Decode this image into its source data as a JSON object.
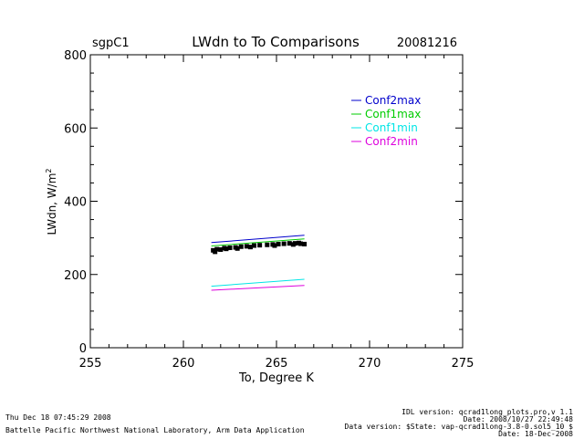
{
  "header": {
    "site": "sgpC1",
    "title": "LWdn to To Comparisons",
    "date": "20081216"
  },
  "chart_data": {
    "type": "line",
    "title": "LWdn to To Comparisons",
    "xlabel": "To, Degree K",
    "ylabel": "LWdn, W/m",
    "ylabel_sup": "2",
    "xlim": [
      255,
      275
    ],
    "ylim": [
      0,
      800
    ],
    "x_ticks": [
      255,
      260,
      265,
      270,
      275
    ],
    "y_ticks": [
      0,
      200,
      400,
      600,
      800
    ],
    "x_minor_step": 1,
    "y_minor_step": 50,
    "grid": false,
    "legend_position": "top-right",
    "series": [
      {
        "name": "Conf2max",
        "color": "#0000cc",
        "x": [
          261.5,
          266.5
        ],
        "y": [
          287,
          307
        ]
      },
      {
        "name": "Conf1max",
        "color": "#00cc00",
        "x": [
          261.5,
          266.5
        ],
        "y": [
          278,
          297
        ]
      },
      {
        "name": "Conf1min",
        "color": "#00e5e5",
        "x": [
          261.5,
          266.5
        ],
        "y": [
          168,
          187
        ]
      },
      {
        "name": "Conf2min",
        "color": "#dd00dd",
        "x": [
          261.5,
          266.5
        ],
        "y": [
          157,
          170
        ]
      }
    ],
    "observations": {
      "color": "#000000",
      "points": [
        [
          261.6,
          266
        ],
        [
          261.8,
          269
        ],
        [
          262.0,
          268
        ],
        [
          262.2,
          272
        ],
        [
          262.5,
          273
        ],
        [
          262.8,
          274
        ],
        [
          263.1,
          276
        ],
        [
          263.4,
          277
        ],
        [
          263.8,
          279
        ],
        [
          264.1,
          280
        ],
        [
          264.5,
          281
        ],
        [
          264.8,
          282
        ],
        [
          265.1,
          283
        ],
        [
          265.4,
          284
        ],
        [
          265.7,
          285
        ],
        [
          266.0,
          285
        ],
        [
          266.3,
          284
        ],
        [
          266.5,
          283
        ],
        [
          262.3,
          270
        ],
        [
          263.6,
          275
        ],
        [
          264.9,
          279
        ],
        [
          266.2,
          286
        ],
        [
          261.7,
          262
        ],
        [
          262.9,
          271
        ],
        [
          265.9,
          282
        ]
      ]
    }
  },
  "footer": {
    "timestamp": "Thu Dec 18 07:45:29 2008",
    "org": "Battelle Pacific Northwest National Laboratory, Arm Data Application",
    "idl_version": "IDL version: qcrad1long_plots.pro,v 1.1",
    "idl_date": "Date: 2008/10/27 22:49:48",
    "data_version": "Data version: $State: vap-qcrad1long-3.8-0.sol5_10 $",
    "data_date": "Date: 18-Dec-2008"
  }
}
